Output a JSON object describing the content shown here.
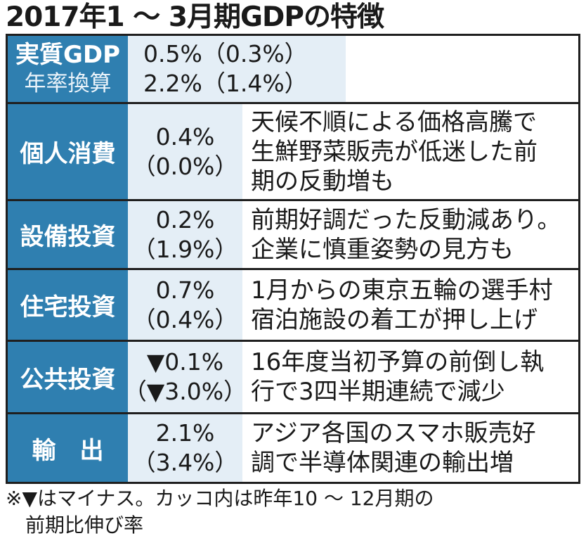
{
  "title": "2017年1 ～ 3月期GDPの特徴",
  "gdp": {
    "label": "実質GDP",
    "sublabel": "年率換算",
    "value": "0.5%（0.3%）",
    "annualized": "2.2%（1.4%）"
  },
  "rows": [
    {
      "label": "個人消費",
      "value": "0.4%",
      "prev": "（0.0%）",
      "note": "天候不順による価格高騰で\n生鮮野菜販売が低迷した前\n期の反動増も"
    },
    {
      "label": "設備投資",
      "value": "0.2%",
      "prev": "（1.9%）",
      "note": "前期好調だった反動減あり。\n企業に慎重姿勢の見方も"
    },
    {
      "label": "住宅投資",
      "value": "0.7%",
      "prev": "（0.4%）",
      "note": "1月からの東京五輪の選手村\n宿泊施設の着工が押し上げ"
    },
    {
      "label": "公共投資",
      "value": "▼0.1%",
      "prev": "（▼3.0%）",
      "note": "16年度当初予算の前倒し執\n行で3四半期連続で減少"
    },
    {
      "label": "輸　出",
      "value": "2.1%",
      "prev": "（3.4%）",
      "note": "アジア各国のスマホ販売好\n調で半導体関連の輸出増"
    }
  ],
  "footnote": "※▼はマイナス。カッコ内は昨年10 ～ 12月期の\n　前期比伸び率",
  "colors": {
    "header_bg": "#2f7fb0",
    "value_bg": "#e4eef6",
    "border": "#1f1f1f"
  }
}
